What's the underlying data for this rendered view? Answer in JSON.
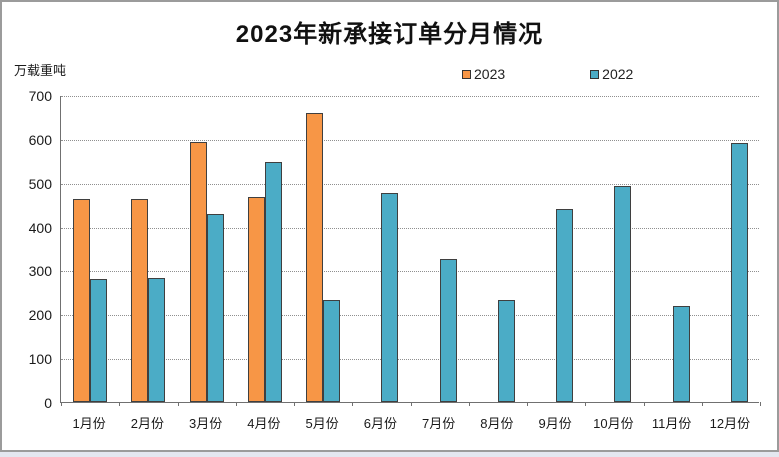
{
  "window": {
    "border_color": "#9b9b9b",
    "background_color": "#ffffff",
    "bottom_strip_color": "#e4e7f0"
  },
  "chart_data": {
    "type": "bar",
    "title": "2023年新承接订单分月情况",
    "unit_label": "万载重吨",
    "categories": [
      "1月份",
      "2月份",
      "3月份",
      "4月份",
      "5月份",
      "6月份",
      "7月份",
      "8月份",
      "9月份",
      "10月份",
      "11月份",
      "12月份"
    ],
    "series": [
      {
        "name": "2023",
        "color": "#F79646",
        "values": [
          462,
          464,
          593,
          467,
          660,
          null,
          null,
          null,
          null,
          null,
          null,
          null
        ]
      },
      {
        "name": "2022",
        "color": "#4BACC6",
        "values": [
          281,
          283,
          429,
          547,
          232,
          476,
          325,
          232,
          440,
          493,
          220,
          591
        ]
      }
    ],
    "ylim": [
      0,
      700
    ],
    "y_ticks": [
      0,
      100,
      200,
      300,
      400,
      500,
      600,
      700
    ],
    "xlabel": "",
    "ylabel": "",
    "grid": "horizontal-dotted",
    "legend_position": "top-center",
    "bar_border_color": "#3f3f3f",
    "gridline_color": "#8f8f8f",
    "axis_color": "#707070",
    "text_color": "#1a1a1a"
  }
}
